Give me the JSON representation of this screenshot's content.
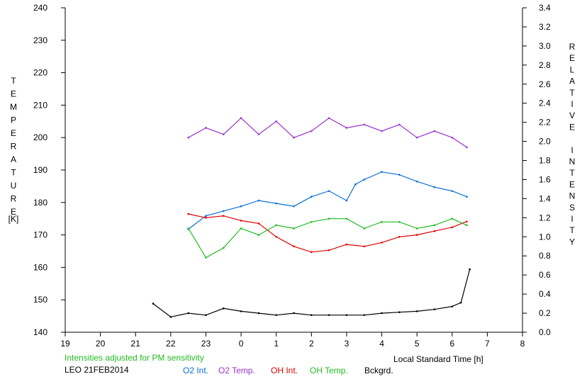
{
  "chart_data": {
    "type": "line",
    "xlabel": "Local Standard Time [h]",
    "ylabel": "TEMPERATURE",
    "ylabel_unit": "[K]",
    "y2label": "RELATIVE INTENSITY",
    "xlim": [
      19,
      8
    ],
    "x_ticks": [
      "19",
      "20",
      "21",
      "22",
      "23",
      "0",
      "1",
      "2",
      "3",
      "4",
      "5",
      "6",
      "7",
      "8"
    ],
    "ylim": [
      140,
      240
    ],
    "y_ticks": [
      "140",
      "150",
      "160",
      "170",
      "180",
      "190",
      "200",
      "210",
      "220",
      "230",
      "240"
    ],
    "y2lim": [
      0.0,
      3.4
    ],
    "y2_ticks": [
      "0.0",
      "0.2",
      "0.4",
      "0.6",
      "0.8",
      "1.0",
      "1.2",
      "1.4",
      "1.6",
      "1.8",
      "2.0",
      "2.2",
      "2.4",
      "2.6",
      "2.8",
      "3.0",
      "3.2",
      "3.4"
    ],
    "grid": false,
    "note": "Intensities adjusted for PM sensitivity",
    "station": "LEO 21FEB2014",
    "series": [
      {
        "name": "O2 Int.",
        "axis": "right",
        "color": "#0a6ed8",
        "x": [
          "22:30",
          "23:00",
          "23:30",
          "0:00",
          "0:30",
          "1:00",
          "1:30",
          "2:00",
          "2:30",
          "3:00",
          "3:15",
          "3:30",
          "4:00",
          "4:30",
          "5:00",
          "5:30",
          "6:00",
          "6:25"
        ],
        "values": [
          1.08,
          1.22,
          1.27,
          1.32,
          1.38,
          1.35,
          1.32,
          1.42,
          1.48,
          1.38,
          1.55,
          1.6,
          1.68,
          1.65,
          1.58,
          1.52,
          1.48,
          1.42
        ]
      },
      {
        "name": "O2 Temp.",
        "axis": "left",
        "color": "#9932cc",
        "x": [
          "22:30",
          "23:00",
          "23:30",
          "0:00",
          "0:30",
          "1:00",
          "1:30",
          "2:00",
          "2:30",
          "3:00",
          "3:30",
          "4:00",
          "4:30",
          "5:00",
          "5:30",
          "6:00",
          "6:25"
        ],
        "values": [
          200,
          203,
          201,
          206,
          201,
          205,
          200,
          202,
          206,
          203,
          204,
          202,
          204,
          200,
          202,
          200,
          197
        ]
      },
      {
        "name": "OH Int.",
        "axis": "right",
        "color": "#dd0000",
        "x": [
          "22:30",
          "23:00",
          "23:30",
          "0:00",
          "0:30",
          "1:00",
          "1:30",
          "2:00",
          "2:30",
          "3:00",
          "3:30",
          "4:00",
          "4:30",
          "5:00",
          "5:30",
          "6:00",
          "6:25"
        ],
        "values": [
          1.24,
          1.2,
          1.22,
          1.17,
          1.14,
          1.0,
          0.9,
          0.84,
          0.86,
          0.92,
          0.9,
          0.94,
          1.0,
          1.02,
          1.06,
          1.1,
          1.16
        ]
      },
      {
        "name": "OH Temp.",
        "axis": "left",
        "color": "#22bb22",
        "x": [
          "22:30",
          "23:00",
          "23:30",
          "0:00",
          "0:30",
          "1:00",
          "1:30",
          "2:00",
          "2:30",
          "3:00",
          "3:30",
          "4:00",
          "4:30",
          "5:00",
          "5:30",
          "6:00",
          "6:25"
        ],
        "values": [
          172,
          163,
          166,
          172,
          170,
          173,
          172,
          174,
          175,
          175,
          172,
          174,
          174,
          172,
          173,
          175,
          173
        ]
      },
      {
        "name": "Bckgrd.",
        "axis": "right",
        "color": "#000000",
        "x": [
          "21:30",
          "22:00",
          "22:30",
          "23:00",
          "23:30",
          "0:00",
          "0:30",
          "1:00",
          "1:30",
          "2:00",
          "2:30",
          "3:00",
          "3:30",
          "4:00",
          "4:30",
          "5:00",
          "5:30",
          "6:00",
          "6:15",
          "6:30"
        ],
        "values": [
          0.3,
          0.16,
          0.2,
          0.18,
          0.25,
          0.22,
          0.2,
          0.18,
          0.2,
          0.18,
          0.18,
          0.18,
          0.18,
          0.2,
          0.21,
          0.22,
          0.24,
          0.27,
          0.31,
          0.66
        ]
      }
    ]
  }
}
